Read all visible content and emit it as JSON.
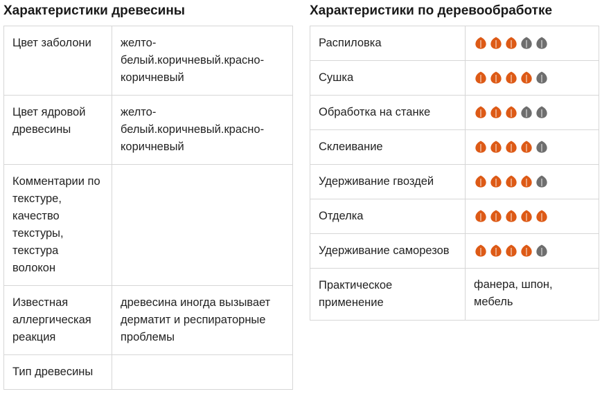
{
  "colors": {
    "leaf_on": "#dd5a16",
    "leaf_off": "#6e6e6e",
    "border": "#d6d6d6",
    "text": "#222222"
  },
  "icons": {
    "rating_icon": "leaf-icon"
  },
  "left": {
    "title": "Характеристики древесины",
    "rows": [
      {
        "key": "Цвет заболони",
        "value": "желто-белый.коричневый.красно-коричневый"
      },
      {
        "key": "Цвет ядровой древесины",
        "value": "желто-белый.коричневый.красно-коричневый"
      },
      {
        "key": "Комментарии по текстуре, качество текстуры, текстура волокон",
        "value": ""
      },
      {
        "key": "Известная аллергическая реакция",
        "value": "древесина иногда вызывает дерматит и респираторные проблемы"
      },
      {
        "key": "Тип древесины",
        "value": ""
      }
    ]
  },
  "right": {
    "title": "Характеристики по деревообработке",
    "rows": [
      {
        "key": "Распиловка",
        "rating": 3,
        "max": 5
      },
      {
        "key": "Сушка",
        "rating": 4,
        "max": 5
      },
      {
        "key": "Обработка на станке",
        "rating": 3,
        "max": 5
      },
      {
        "key": "Склеивание",
        "rating": 4,
        "max": 5
      },
      {
        "key": "Удерживание гвоздей",
        "rating": 4,
        "max": 5
      },
      {
        "key": "Отделка",
        "rating": 5,
        "max": 5
      },
      {
        "key": "Удерживание саморезов",
        "rating": 4,
        "max": 5
      },
      {
        "key": "Практическое применение",
        "value": "фанера, шпон, мебель"
      }
    ]
  }
}
